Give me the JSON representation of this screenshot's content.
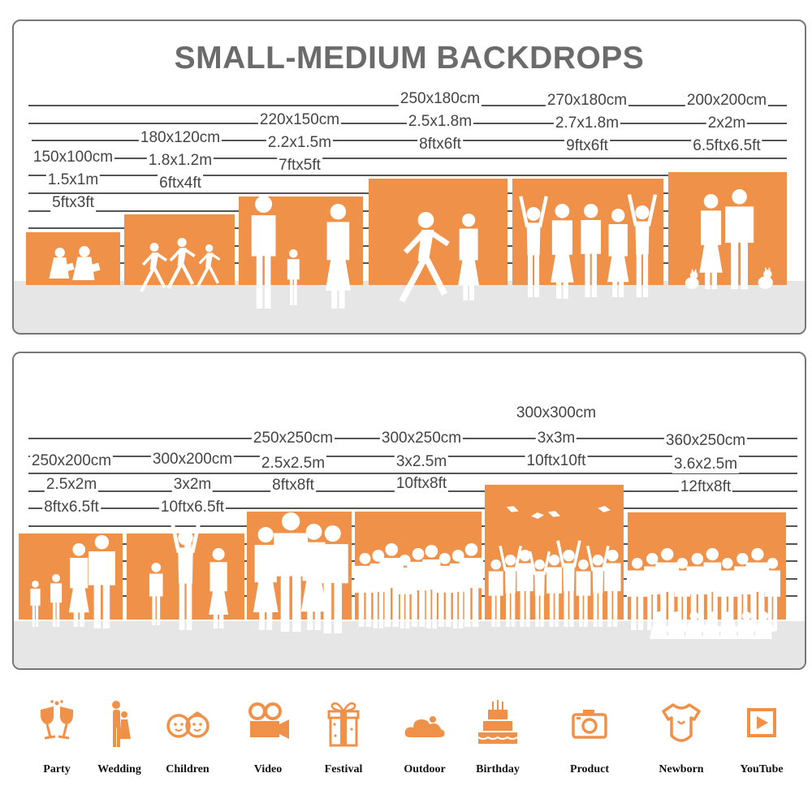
{
  "title": "SMALL-MEDIUM BACKDROPS",
  "scale_ticks": [
    "10",
    "9",
    "8",
    "7",
    "6",
    "5",
    "4",
    "3",
    "2",
    "1"
  ],
  "colors": {
    "backdrop": "#f0914a",
    "floor": "#e6e6e6",
    "title": "#6b6b6b",
    "icon": "#f0914a"
  },
  "top_row": [
    {
      "cm": "150x100cm",
      "m": "1.5x1m",
      "ft": "5ftx3ft",
      "scene": "children-reading"
    },
    {
      "cm": "180x120cm",
      "m": "1.8x1.2m",
      "ft": "6ftx4ft",
      "scene": "children-running"
    },
    {
      "cm": "220x150cm",
      "m": "2.2x1.5m",
      "ft": "7ftx5ft",
      "scene": "family-walking"
    },
    {
      "cm": "250x180cm",
      "m": "2.5x1.8m",
      "ft": "8ftx6ft",
      "scene": "wedding-couple"
    },
    {
      "cm": "270x180cm",
      "m": "2.7x1.8m",
      "ft": "9ftx6ft",
      "scene": "girls-party"
    },
    {
      "cm": "200x200cm",
      "m": "2x2m",
      "ft": "6.5ftx6.5ft",
      "scene": "couple-with-pets"
    }
  ],
  "bottom_row": [
    {
      "cm": "250x200cm",
      "m": "2.5x2m",
      "ft": "8ftx6.5ft",
      "scene": "family-four"
    },
    {
      "cm": "300x200cm",
      "m": "3x2m",
      "ft": "10ftx6.5ft",
      "scene": "family-lifting-child"
    },
    {
      "cm": "250x250cm",
      "m": "2.5x2.5m",
      "ft": "8ftx8ft",
      "scene": "adults-standing"
    },
    {
      "cm": "300x250cm",
      "m": "3x2.5m",
      "ft": "10ftx8ft",
      "scene": "group-friends"
    },
    {
      "cm": "300x300cm",
      "m": "3x3m",
      "ft": "10ftx10ft",
      "scene": "graduation"
    },
    {
      "cm": "360x250cm",
      "m": "3.6x2.5m",
      "ft": "12ftx8ft",
      "scene": "large-group"
    }
  ],
  "icons": [
    {
      "label": "Party",
      "icon": "champagne-glasses-icon"
    },
    {
      "label": "Wedding",
      "icon": "wedding-couple-icon"
    },
    {
      "label": "Children",
      "icon": "children-faces-icon"
    },
    {
      "label": "Video",
      "icon": "video-camera-icon"
    },
    {
      "label": "Festival",
      "icon": "gift-box-icon"
    },
    {
      "label": "Outdoor",
      "icon": "cloud-icon"
    },
    {
      "label": "Birthday",
      "icon": "birthday-cake-icon"
    },
    {
      "label": "Product",
      "icon": "camera-icon"
    },
    {
      "label": "Newborn",
      "icon": "baby-onesie-icon"
    },
    {
      "label": "YouTube",
      "icon": "play-button-icon"
    }
  ]
}
